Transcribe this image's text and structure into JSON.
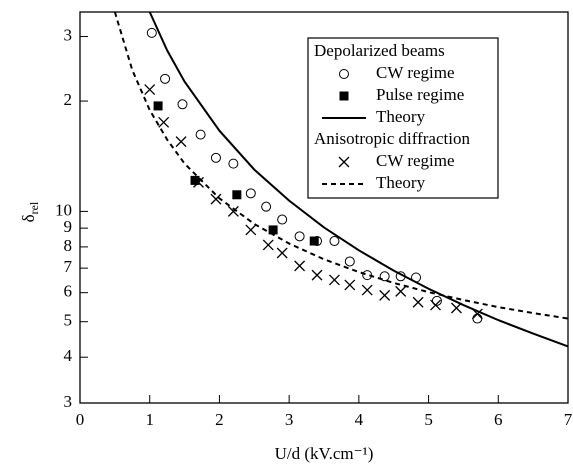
{
  "chart_data": {
    "type": "scatter",
    "x_label": "U/d (kV.cm⁻¹)",
    "y_label": "δ",
    "y_label_subscript": "rel",
    "log_y": true,
    "xlim": [
      0,
      7
    ],
    "xticks": [
      0,
      1,
      2,
      3,
      4,
      5,
      6,
      7
    ],
    "ylim": [
      3,
      35
    ],
    "yticks": [
      3,
      4,
      5,
      6,
      7,
      8,
      9,
      10,
      {
        "value": 20,
        "label": "2"
      },
      {
        "value": 30,
        "label": "3"
      }
    ],
    "legend_titles": [
      "Depolarized beams",
      "Anisotropic diffraction"
    ],
    "series": [
      {
        "name": "CW regime",
        "marker": "circle-open",
        "color": "#000000",
        "x": [
          1.03,
          1.22,
          1.47,
          1.73,
          1.95,
          2.2,
          2.45,
          2.67,
          2.9,
          3.15,
          3.4,
          3.65,
          3.87,
          4.12,
          4.37,
          4.6,
          4.82,
          5.12,
          5.7
        ],
        "values": [
          30.7,
          23.0,
          19.6,
          16.2,
          14.0,
          13.5,
          11.2,
          10.3,
          9.5,
          8.55,
          8.3,
          8.3,
          7.3,
          6.7,
          6.65,
          6.65,
          6.6,
          5.7,
          5.1
        ]
      },
      {
        "name": "Pulse regime",
        "marker": "square",
        "color": "#000000",
        "x": [
          1.12,
          1.65,
          2.25,
          2.77,
          3.36
        ],
        "values": [
          19.4,
          12.15,
          11.1,
          8.9,
          8.3
        ]
      },
      {
        "name": "Theory",
        "marker": "line-solid",
        "color": "#000000",
        "x": [
          1.0,
          1.25,
          1.5,
          2,
          2.5,
          3,
          3.5,
          4,
          4.5,
          5,
          5.5,
          6,
          6.5,
          7
        ],
        "values": [
          35,
          27.5,
          22.6,
          16.6,
          13.0,
          10.7,
          9.04,
          7.83,
          6.89,
          6.15,
          5.55,
          5.05,
          4.64,
          4.28
        ]
      },
      {
        "name": "CW regime",
        "marker": "x",
        "color": "#000000",
        "x": [
          1.0,
          1.2,
          1.45,
          1.7,
          1.95,
          2.2,
          2.45,
          2.7,
          2.9,
          3.15,
          3.4,
          3.65,
          3.87,
          4.12,
          4.37,
          4.6,
          4.85,
          5.1,
          5.4,
          5.7
        ],
        "values": [
          21.5,
          17.5,
          15.5,
          12.0,
          10.8,
          10.0,
          8.9,
          8.1,
          7.7,
          7.1,
          6.7,
          6.5,
          6.3,
          6.1,
          5.9,
          6.05,
          5.65,
          5.55,
          5.45,
          5.25
        ]
      },
      {
        "name": "Theory",
        "marker": "line-dashed",
        "color": "#000000",
        "x": [
          0.5,
          0.75,
          1,
          1.25,
          1.5,
          2,
          2.5,
          3,
          3.5,
          4,
          4.5,
          5,
          5.5,
          6,
          6.5,
          7
        ],
        "values": [
          35,
          24.3,
          18.9,
          15.7,
          13.5,
          10.85,
          9.24,
          8.17,
          7.4,
          6.83,
          6.38,
          6.02,
          5.73,
          5.48,
          5.28,
          5.1
        ]
      }
    ]
  }
}
